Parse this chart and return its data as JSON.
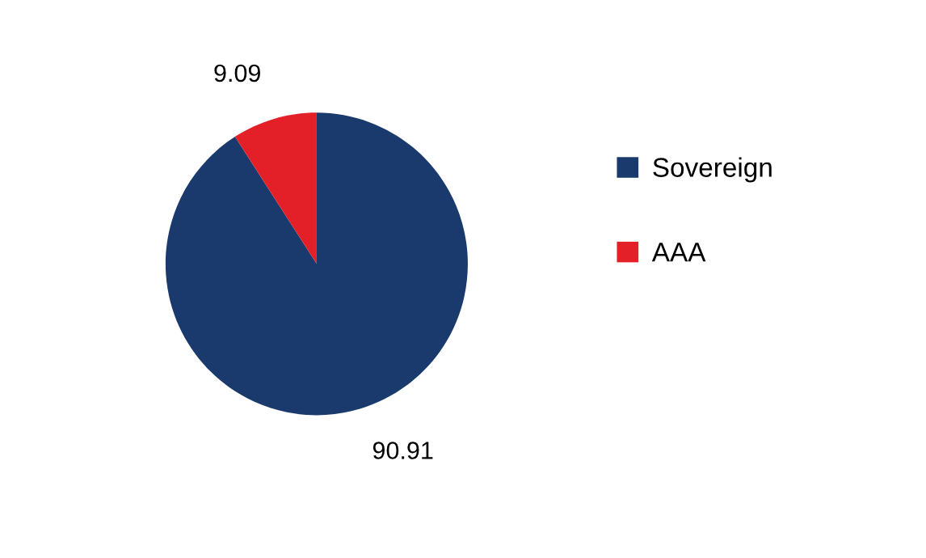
{
  "chart_data": {
    "type": "pie",
    "categories": [
      "Sovereign",
      "AAA"
    ],
    "values": [
      90.91,
      9.09
    ],
    "colors": [
      "#1a3a6e",
      "#e32028"
    ],
    "data_labels": true,
    "legend": "right"
  }
}
